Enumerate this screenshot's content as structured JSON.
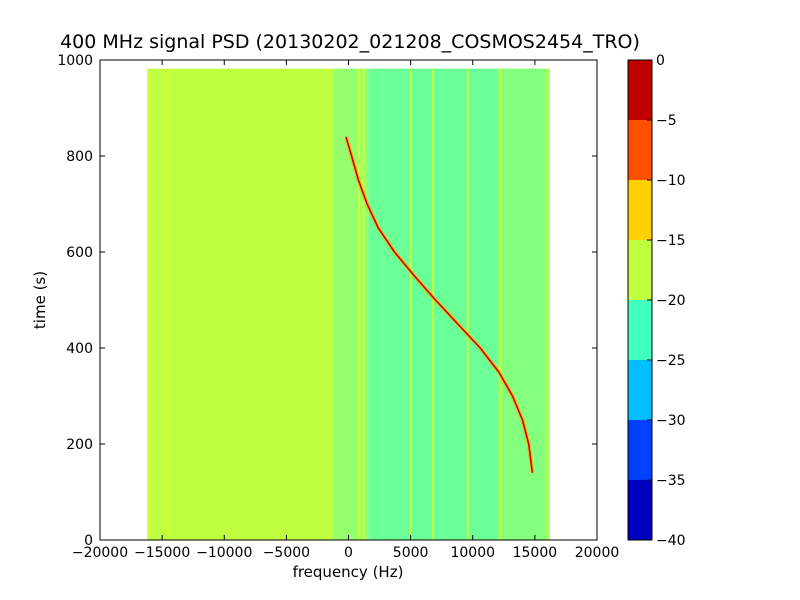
{
  "chart_data": {
    "type": "heatmap",
    "title": "400 MHz signal PSD (20130202_021208_COSMOS2454_TRO)",
    "xlabel": "frequency (Hz)",
    "ylabel": "time (s)",
    "xlim": [
      -20000,
      20000
    ],
    "ylim": [
      0,
      1000
    ],
    "xticks": [
      -20000,
      -15000,
      -10000,
      -5000,
      0,
      5000,
      10000,
      15000,
      20000
    ],
    "xtick_labels": [
      "−20000",
      "−15000",
      "−10000",
      "−5000",
      "0",
      "5000",
      "10000",
      "15000",
      "20000"
    ],
    "yticks": [
      0,
      200,
      400,
      600,
      800,
      1000
    ],
    "ytick_labels": [
      "0",
      "200",
      "400",
      "600",
      "800",
      "1000"
    ],
    "data_extent": {
      "x": [
        -16200,
        16200
      ],
      "y": [
        0,
        982
      ]
    },
    "background_regions": [
      {
        "x_from": -16200,
        "x_to": -1200,
        "level_db": -17.5
      },
      {
        "x_from": -1200,
        "x_to": 1600,
        "level_db": -20
      },
      {
        "x_from": 1600,
        "x_to": 12000,
        "level_db": -22.5
      },
      {
        "x_from": 12000,
        "x_to": 16200,
        "level_db": -21
      }
    ],
    "vertical_lines_hz": [
      -16100,
      -14500,
      850,
      1200,
      5000,
      6800,
      9600,
      12200,
      16000
    ],
    "doppler_curve": [
      {
        "t": 840,
        "f": -200
      },
      {
        "t": 800,
        "f": 250
      },
      {
        "t": 750,
        "f": 800
      },
      {
        "t": 700,
        "f": 1500
      },
      {
        "t": 650,
        "f": 2400
      },
      {
        "t": 600,
        "f": 3700
      },
      {
        "t": 550,
        "f": 5300
      },
      {
        "t": 500,
        "f": 7000
      },
      {
        "t": 450,
        "f": 8800
      },
      {
        "t": 400,
        "f": 10600
      },
      {
        "t": 350,
        "f": 12100
      },
      {
        "t": 300,
        "f": 13200
      },
      {
        "t": 250,
        "f": 14000
      },
      {
        "t": 200,
        "f": 14500
      },
      {
        "t": 140,
        "f": 14800
      }
    ],
    "colorbar": {
      "levels": [
        -40,
        -35,
        -30,
        -25,
        -20,
        -15,
        -10,
        -5,
        0
      ],
      "labels": [
        "−40",
        "−35",
        "−30",
        "−25",
        "−20",
        "−15",
        "−10",
        "−5",
        "0"
      ],
      "colors": [
        "#0000bf",
        "#0040ff",
        "#00bfff",
        "#40ffbf",
        "#bfff40",
        "#ffd000",
        "#ff5000",
        "#c00000"
      ]
    }
  }
}
